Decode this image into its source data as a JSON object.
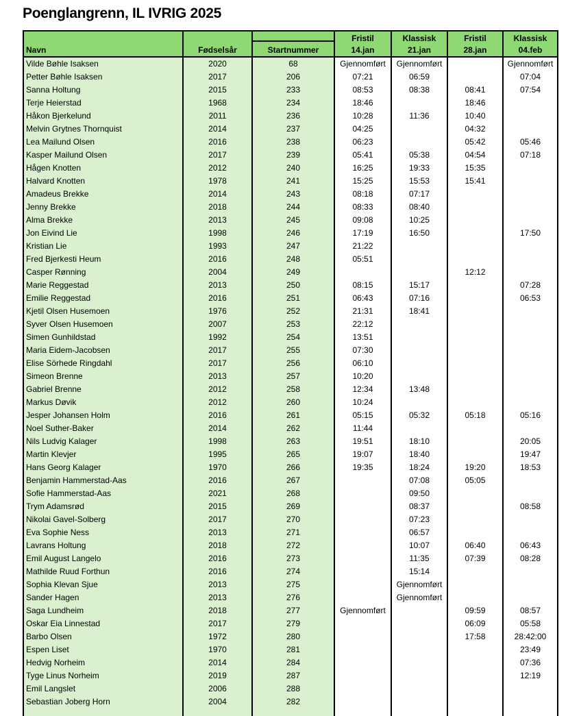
{
  "title": "Poenglangrenn, IL IVRIG 2025",
  "colors": {
    "header_green": "#8ed973",
    "cell_green": "#daf0ce",
    "border": "#000000",
    "time_cell_bg": "#ffffff"
  },
  "table": {
    "columns": {
      "navn": "Navn",
      "fodselsar": "Fødselsår",
      "startnummer": "Startnummer",
      "race1": {
        "type": "Fristil",
        "date": "14.jan"
      },
      "race2": {
        "type": "Klassisk",
        "date": "21.jan"
      },
      "race3": {
        "type": "Fristil",
        "date": "28.jan"
      },
      "race4": {
        "type": "Klassisk",
        "date": "04.feb"
      }
    },
    "rows": [
      {
        "name": "Vilde Bøhle Isaksen",
        "birth_year": "2020",
        "start_number": "68",
        "times": [
          "Gjennomført",
          "Gjennomført",
          "",
          "Gjennomført"
        ]
      },
      {
        "name": "Petter Bøhle Isaksen",
        "birth_year": "2017",
        "start_number": "206",
        "times": [
          "07:21",
          "06:59",
          "",
          "07:04"
        ]
      },
      {
        "name": "Sanna Holtung",
        "birth_year": "2015",
        "start_number": "233",
        "times": [
          "08:53",
          "08:38",
          "08:41",
          "07:54"
        ]
      },
      {
        "name": "Terje Heierstad",
        "birth_year": "1968",
        "start_number": "234",
        "times": [
          "18:46",
          "",
          "18:46",
          ""
        ]
      },
      {
        "name": "Håkon Bjerkelund",
        "birth_year": "2011",
        "start_number": "236",
        "times": [
          "10:28",
          "11:36",
          "10:40",
          ""
        ]
      },
      {
        "name": "Melvin Grytnes Thornquist",
        "birth_year": "2014",
        "start_number": "237",
        "times": [
          "04:25",
          "",
          "04:32",
          ""
        ]
      },
      {
        "name": "Lea Mailund Olsen",
        "birth_year": "2016",
        "start_number": "238",
        "times": [
          "06:23",
          "",
          "05:42",
          "05:46"
        ]
      },
      {
        "name": "Kasper Mailund Olsen",
        "birth_year": "2017",
        "start_number": "239",
        "times": [
          "05:41",
          "05:38",
          "04:54",
          "07:18"
        ]
      },
      {
        "name": "Hågen Knotten",
        "birth_year": "2012",
        "start_number": "240",
        "times": [
          "16:25",
          "19:33",
          "15:35",
          ""
        ]
      },
      {
        "name": "Halvard Knotten",
        "birth_year": "1978",
        "start_number": "241",
        "times": [
          "15:25",
          "15:53",
          "15:41",
          ""
        ]
      },
      {
        "name": "Amadeus Brekke",
        "birth_year": "2014",
        "start_number": "243",
        "times": [
          "08:18",
          "07:17",
          "",
          ""
        ]
      },
      {
        "name": "Jenny Brekke",
        "birth_year": "2018",
        "start_number": "244",
        "times": [
          "08:33",
          "08:40",
          "",
          ""
        ]
      },
      {
        "name": "Alma Brekke",
        "birth_year": "2013",
        "start_number": "245",
        "times": [
          "09:08",
          "10:25",
          "",
          ""
        ]
      },
      {
        "name": "Jon Eivind Lie",
        "birth_year": "1998",
        "start_number": "246",
        "times": [
          "17:19",
          "16:50",
          "",
          "17:50"
        ]
      },
      {
        "name": "Kristian Lie",
        "birth_year": "1993",
        "start_number": "247",
        "times": [
          "21:22",
          "",
          "",
          ""
        ]
      },
      {
        "name": "Fred Bjerkesti Heum",
        "birth_year": "2016",
        "start_number": "248",
        "times": [
          "05:51",
          "",
          "",
          ""
        ]
      },
      {
        "name": "Casper Rønning",
        "birth_year": "2004",
        "start_number": "249",
        "times": [
          "",
          "",
          "12:12",
          ""
        ]
      },
      {
        "name": "Marie Reggestad",
        "birth_year": "2013",
        "start_number": "250",
        "times": [
          "08:15",
          "15:17",
          "",
          "07:28"
        ]
      },
      {
        "name": "Emilie Reggestad",
        "birth_year": "2016",
        "start_number": "251",
        "times": [
          "06:43",
          "07:16",
          "",
          "06:53"
        ]
      },
      {
        "name": "Kjetil Olsen Husemoen",
        "birth_year": "1976",
        "start_number": "252",
        "times": [
          "21:31",
          "18:41",
          "",
          ""
        ]
      },
      {
        "name": "Syver Olsen Husemoen",
        "birth_year": "2007",
        "start_number": "253",
        "times": [
          "22:12",
          "",
          "",
          ""
        ]
      },
      {
        "name": "Simen Gunhildstad",
        "birth_year": "1992",
        "start_number": "254",
        "times": [
          "13:51",
          "",
          "",
          ""
        ]
      },
      {
        "name": "Maria Eidem-Jacobsen",
        "birth_year": "2017",
        "start_number": "255",
        "times": [
          "07:30",
          "",
          "",
          ""
        ]
      },
      {
        "name": "Elise Sörhede Ringdahl",
        "birth_year": "2017",
        "start_number": "256",
        "times": [
          "06:10",
          "",
          "",
          ""
        ]
      },
      {
        "name": "Simeon Brenne",
        "birth_year": "2013",
        "start_number": "257",
        "times": [
          "10:20",
          "",
          "",
          ""
        ]
      },
      {
        "name": "Gabriel Brenne",
        "birth_year": "2012",
        "start_number": "258",
        "times": [
          "12:34",
          "13:48",
          "",
          ""
        ]
      },
      {
        "name": "Markus Døvik",
        "birth_year": "2012",
        "start_number": "260",
        "times": [
          "10:24",
          "",
          "",
          ""
        ]
      },
      {
        "name": "Jesper Johansen Holm",
        "birth_year": "2016",
        "start_number": "261",
        "times": [
          "05:15",
          "05:32",
          "05:18",
          "05:16"
        ]
      },
      {
        "name": "Noel Suther-Baker",
        "birth_year": "2014",
        "start_number": "262",
        "times": [
          "11:44",
          "",
          "",
          ""
        ]
      },
      {
        "name": "Nils Ludvig Kalager",
        "birth_year": "1998",
        "start_number": "263",
        "times": [
          "19:51",
          "18:10",
          "",
          "20:05"
        ]
      },
      {
        "name": "Martin Klevjer",
        "birth_year": "1995",
        "start_number": "265",
        "times": [
          "19:07",
          "18:40",
          "",
          "19:47"
        ]
      },
      {
        "name": "Hans Georg Kalager",
        "birth_year": "1970",
        "start_number": "266",
        "times": [
          "19:35",
          "18:24",
          "19:20",
          "18:53"
        ]
      },
      {
        "name": "Benjamin Hammerstad-Aas",
        "birth_year": "2016",
        "start_number": "267",
        "times": [
          "",
          "07:08",
          "05:05",
          ""
        ]
      },
      {
        "name": "Sofie Hammerstad-Aas",
        "birth_year": "2021",
        "start_number": "268",
        "times": [
          "",
          "09:50",
          "",
          ""
        ]
      },
      {
        "name": "Trym Adamsrød",
        "birth_year": "2015",
        "start_number": "269",
        "times": [
          "",
          "08:37",
          "",
          "08:58"
        ]
      },
      {
        "name": "Nikolai Gavel-Solberg",
        "birth_year": "2017",
        "start_number": "270",
        "times": [
          "",
          "07:23",
          "",
          ""
        ]
      },
      {
        "name": "Eva Sophie Ness",
        "birth_year": "2013",
        "start_number": "271",
        "times": [
          "",
          "06:57",
          "",
          ""
        ]
      },
      {
        "name": "Lavrans Holtung",
        "birth_year": "2018",
        "start_number": "272",
        "times": [
          "",
          "10:07",
          "06:40",
          "06:43"
        ]
      },
      {
        "name": "Emil August Langelo",
        "birth_year": "2016",
        "start_number": "273",
        "times": [
          "",
          "11:35",
          "07:39",
          "08:28"
        ]
      },
      {
        "name": "Mathilde Ruud Forthun",
        "birth_year": "2016",
        "start_number": "274",
        "times": [
          "",
          "15:14",
          "",
          ""
        ]
      },
      {
        "name": "Sophia Klevan Sjue",
        "birth_year": "2013",
        "start_number": "275",
        "times": [
          "",
          "Gjennomført",
          "",
          ""
        ]
      },
      {
        "name": "Sander Hagen",
        "birth_year": "2013",
        "start_number": "276",
        "times": [
          "",
          "Gjennomført",
          "",
          ""
        ]
      },
      {
        "name": "Saga Lundheim",
        "birth_year": "2018",
        "start_number": "277",
        "times": [
          "Gjennomført",
          "",
          "09:59",
          "08:57"
        ]
      },
      {
        "name": "Oskar Eia Linnestad",
        "birth_year": "2017",
        "start_number": "279",
        "times": [
          "",
          "",
          "06:09",
          "05:58"
        ]
      },
      {
        "name": "Barbo Olsen",
        "birth_year": "1972",
        "start_number": "280",
        "times": [
          "",
          "",
          "17:58",
          "28:42:00"
        ]
      },
      {
        "name": "Espen Liset",
        "birth_year": "1970",
        "start_number": "281",
        "times": [
          "",
          "",
          "",
          "23:49"
        ]
      },
      {
        "name": "Hedvig Norheim",
        "birth_year": "2014",
        "start_number": "284",
        "times": [
          "",
          "",
          "",
          "07:36"
        ]
      },
      {
        "name": "Tyge Linus Norheim",
        "birth_year": "2019",
        "start_number": "287",
        "times": [
          "",
          "",
          "",
          "12:19"
        ]
      },
      {
        "name": "Emil Langslet",
        "birth_year": "2006",
        "start_number": "288",
        "times": [
          "",
          "",
          "",
          ""
        ]
      },
      {
        "name": "Sebastian Joberg Horn",
        "birth_year": "2004",
        "start_number": "282",
        "times": [
          "",
          "",
          "",
          ""
        ]
      }
    ]
  }
}
